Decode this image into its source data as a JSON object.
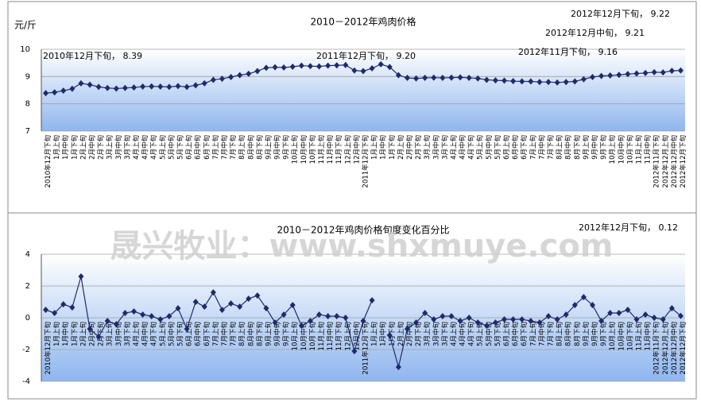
{
  "chart_data": [
    {
      "type": "line",
      "title": "2010－2012年鸡肉价格",
      "y_label": "元/斤",
      "categories": [
        "2010年12月下旬",
        "1月上旬",
        "1月中旬",
        "1月下旬",
        "2月上旬",
        "2月中旬",
        "2月下旬",
        "3月上旬",
        "3月中旬",
        "3月下旬",
        "4月上旬",
        "4月中旬",
        "4月下旬",
        "5月上旬",
        "5月中旬",
        "5月下旬",
        "6月上旬",
        "6月中旬",
        "6月下旬",
        "7月上旬",
        "7月中旬",
        "7月下旬",
        "8月上旬",
        "8月中旬",
        "8月下旬",
        "9月上旬",
        "9月中旬",
        "9月下旬",
        "10月上旬",
        "10月中旬",
        "10月下旬",
        "11月上旬",
        "11月中旬",
        "11月下旬",
        "12月上旬",
        "12月中旬",
        "2011年12月下旬",
        "1月上旬",
        "1月中旬",
        "1月下旬",
        "2月上旬",
        "2月中旬",
        "2月下旬",
        "3月上旬",
        "3月中旬",
        "3月下旬",
        "4月上旬",
        "4月中旬",
        "4月下旬",
        "5月上旬",
        "5月中旬",
        "5月下旬",
        "6月上旬",
        "6月中旬",
        "6月下旬",
        "7月上旬",
        "7月中旬",
        "7月下旬",
        "8月上旬",
        "8月中旬",
        "8月下旬",
        "9月上旬",
        "9月中旬",
        "9月下旬",
        "10月上旬",
        "10月中旬",
        "10月下旬",
        "11月上旬",
        "11月中旬",
        "2012年11月下旬",
        "2012年12月上旬",
        "2012年12月中旬",
        "2012年12月下旬"
      ],
      "series": [
        {
          "name": "鸡肉价格",
          "color": "#1f2a6b",
          "values": [
            8.39,
            8.42,
            8.48,
            8.55,
            8.75,
            8.7,
            8.62,
            8.58,
            8.56,
            8.58,
            8.6,
            8.63,
            8.64,
            8.63,
            8.62,
            8.65,
            8.62,
            8.68,
            8.75,
            8.88,
            8.92,
            8.98,
            9.05,
            9.1,
            9.2,
            9.32,
            9.34,
            9.33,
            9.36,
            9.4,
            9.38,
            9.37,
            9.4,
            9.41,
            9.42,
            9.22,
            9.2,
            9.3,
            9.45,
            9.35,
            9.05,
            8.95,
            8.93,
            8.95,
            8.96,
            8.95,
            8.96,
            8.97,
            8.95,
            8.93,
            8.88,
            8.86,
            8.85,
            8.83,
            8.82,
            8.82,
            8.8,
            8.8,
            8.78,
            8.8,
            8.82,
            8.9,
            8.98,
            9.02,
            9.04,
            9.06,
            9.09,
            9.11,
            9.13,
            9.16,
            9.15,
            9.21,
            9.22
          ]
        }
      ],
      "ylim": [
        7,
        10
      ],
      "yticks": [
        7,
        8,
        9,
        10
      ],
      "grid": true,
      "annotations": [
        "2012年12月下旬， 9.22",
        "2012年12月中旬， 9.21",
        "2012年11月下旬， 9.16",
        "2010年12月下旬， 8.39",
        "2011年12月下旬， 9.20"
      ]
    },
    {
      "type": "line",
      "title": "2010－2012年鸡肉价格旬度变化百分比",
      "categories": [
        "2010年12月下旬",
        "1月上旬",
        "1月中旬",
        "1月下旬",
        "2月上旬",
        "2月中旬",
        "2月下旬",
        "3月上旬",
        "3月中旬",
        "3月下旬",
        "4月上旬",
        "4月中旬",
        "4月下旬",
        "5月上旬",
        "5月中旬",
        "5月下旬",
        "6月上旬",
        "6月中旬",
        "6月下旬",
        "7月上旬",
        "7月中旬",
        "7月下旬",
        "8月上旬",
        "8月中旬",
        "8月下旬",
        "9月上旬",
        "9月中旬",
        "9月下旬",
        "10月上旬",
        "10月中旬",
        "10月下旬",
        "11月上旬",
        "11月中旬",
        "11月下旬",
        "12月上旬",
        "12月中旬",
        "2011年12月下旬",
        "1月上旬",
        "1月中旬",
        "1月下旬",
        "2月上旬",
        "2月中旬",
        "2月下旬",
        "3月上旬",
        "3月中旬",
        "3月下旬",
        "4月上旬",
        "4月中旬",
        "4月下旬",
        "5月上旬",
        "5月中旬",
        "5月下旬",
        "6月上旬",
        "6月中旬",
        "6月下旬",
        "7月上旬",
        "7月中旬",
        "7月下旬",
        "8月上旬",
        "8月中旬",
        "8月下旬",
        "9月上旬",
        "9月中旬",
        "9月下旬",
        "10月上旬",
        "10月中旬",
        "10月下旬",
        "11月上旬",
        "11月中旬",
        "2012年11月下旬",
        "2012年12月上旬",
        "2012年12月中旬",
        "2012年12月下旬"
      ],
      "series": [
        {
          "name": "旬度变化百分比",
          "color": "#1f2a6b",
          "values": [
            0.5,
            0.3,
            0.85,
            0.65,
            2.6,
            -0.7,
            -1.2,
            -0.2,
            -0.4,
            0.3,
            0.4,
            0.2,
            0.1,
            -0.1,
            0.1,
            0.6,
            -0.7,
            1.0,
            0.7,
            1.6,
            0.5,
            0.9,
            0.7,
            1.2,
            1.4,
            0.6,
            -0.3,
            0.2,
            0.8,
            -0.5,
            -0.2,
            0.2,
            0.1,
            0.1,
            0.0,
            -2.1,
            -0.2,
            1.1,
            null,
            -1.1,
            -3.1,
            -0.7,
            -0.3,
            0.3,
            -0.1,
            0.1,
            0.1,
            -0.2,
            0.0,
            -0.3,
            -0.5,
            -0.3,
            -0.1,
            -0.1,
            -0.1,
            -0.2,
            -0.3,
            0.1,
            -0.1,
            0.2,
            0.8,
            1.3,
            0.8,
            -0.2,
            0.3,
            0.3,
            0.5,
            -0.1,
            0.2,
            0.0,
            -0.1,
            0.6,
            0.12
          ]
        }
      ],
      "ylim": [
        -4,
        4
      ],
      "yticks": [
        -4,
        -2,
        0,
        2,
        4
      ],
      "grid": true,
      "annotations": [
        "2012年12月下旬， 0.12"
      ]
    }
  ],
  "watermark": "晟兴牧业：www.shxmuye.com"
}
